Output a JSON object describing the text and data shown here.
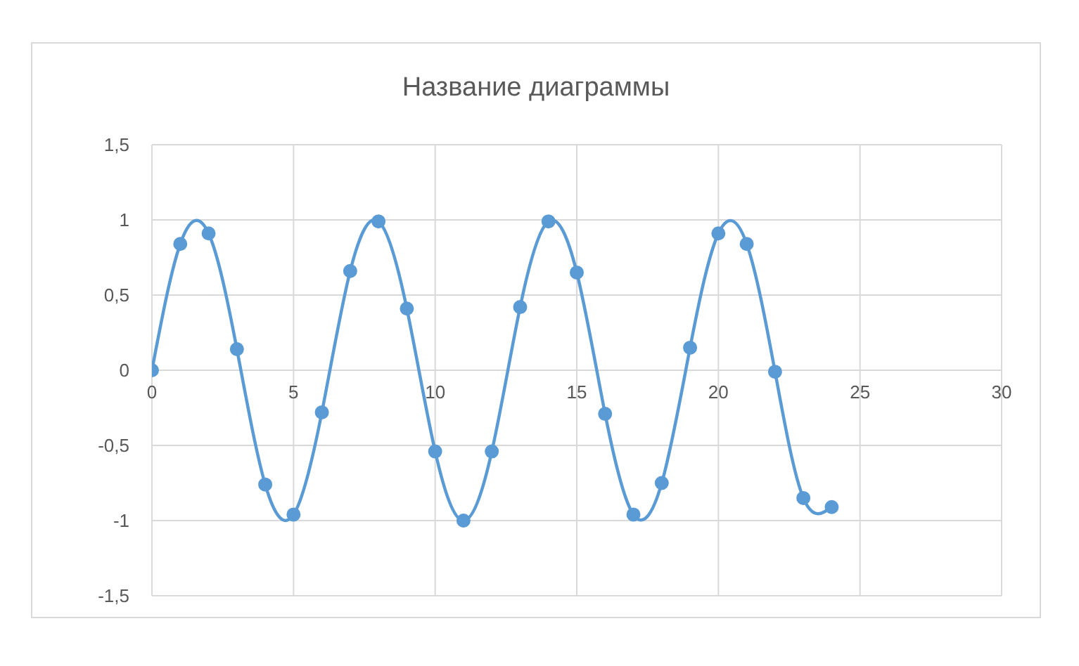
{
  "chart_data": {
    "type": "line",
    "title": "Название диаграммы",
    "x": [
      0,
      1,
      2,
      3,
      4,
      5,
      6,
      7,
      8,
      9,
      10,
      11,
      12,
      13,
      14,
      15,
      16,
      17,
      18,
      19,
      20,
      21,
      22,
      23,
      24
    ],
    "series": [
      {
        "color": "#5b9bd5",
        "values": [
          0,
          0.84,
          0.91,
          0.14,
          -0.76,
          -0.96,
          -0.28,
          0.66,
          0.99,
          0.41,
          -0.54,
          -1.0,
          -0.54,
          0.42,
          0.99,
          0.65,
          -0.29,
          -0.96,
          -0.75,
          0.15,
          0.91,
          0.84,
          -0.01,
          -0.85,
          -0.91
        ]
      }
    ],
    "xlim": [
      0,
      30
    ],
    "xticks": [
      0,
      5,
      10,
      15,
      20,
      25,
      30
    ],
    "ylim": [
      -1.5,
      1.5
    ],
    "yticks": [
      {
        "value": -1.5,
        "label": "-1,5"
      },
      -1,
      {
        "value": -0.5,
        "label": "-0,5"
      },
      0,
      {
        "value": 0.5,
        "label": "0,5"
      },
      1,
      {
        "value": 1.5,
        "label": "1,5"
      }
    ],
    "grid": true,
    "marker": "circle",
    "line_style": "solid"
  }
}
